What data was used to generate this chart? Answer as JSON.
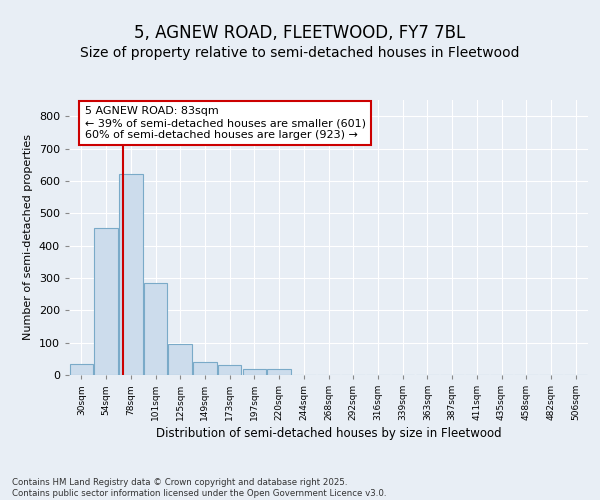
{
  "title1": "5, AGNEW ROAD, FLEETWOOD, FY7 7BL",
  "title2": "Size of property relative to semi-detached houses in Fleetwood",
  "xlabel": "Distribution of semi-detached houses by size in Fleetwood",
  "ylabel": "Number of semi-detached properties",
  "footnote": "Contains HM Land Registry data © Crown copyright and database right 2025.\nContains public sector information licensed under the Open Government Licence v3.0.",
  "categories": [
    "30sqm",
    "54sqm",
    "78sqm",
    "101sqm",
    "125sqm",
    "149sqm",
    "173sqm",
    "197sqm",
    "220sqm",
    "244sqm",
    "268sqm",
    "292sqm",
    "316sqm",
    "339sqm",
    "363sqm",
    "387sqm",
    "411sqm",
    "435sqm",
    "458sqm",
    "482sqm",
    "506sqm"
  ],
  "values": [
    35,
    455,
    620,
    285,
    95,
    40,
    30,
    20,
    18,
    0,
    0,
    0,
    0,
    0,
    0,
    0,
    0,
    0,
    0,
    0,
    0
  ],
  "bar_color": "#ccdcec",
  "bar_edge_color": "#7aaac8",
  "vline_x": 1.68,
  "pct_smaller": 39,
  "count_smaller": 601,
  "pct_larger": 60,
  "count_larger": 923,
  "property_label": "5 AGNEW ROAD: 83sqm",
  "annotation_box_color": "#cc0000",
  "ylim": [
    0,
    850
  ],
  "yticks": [
    0,
    100,
    200,
    300,
    400,
    500,
    600,
    700,
    800
  ],
  "bg_color": "#e8eef5",
  "grid_color": "#ffffff",
  "title_fontsize": 12,
  "subtitle_fontsize": 10,
  "annotation_fontsize": 8
}
